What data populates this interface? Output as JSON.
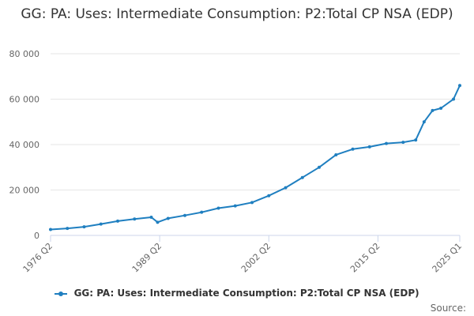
{
  "chart_data": {
    "type": "line",
    "title": "GG: PA: Uses: Intermediate Consumption: P2:Total CP NSA (EDP)",
    "xlabel": "",
    "ylabel": "",
    "x_tick_labels": [
      "1976 Q2",
      "1989 Q2",
      "2002 Q2",
      "2015 Q2",
      "2025 Q1"
    ],
    "y_tick_labels": [
      "0",
      "20 000",
      "40 000",
      "60 000",
      "80 000"
    ],
    "ylim": [
      0,
      80000
    ],
    "grid": "horizontal",
    "legend_position": "bottom",
    "color": "#1f7fc0",
    "series": [
      {
        "name": "GG: PA: Uses: Intermediate Consumption: P2:Total CP NSA (EDP)",
        "points": [
          [
            "1976 Q2",
            2600
          ],
          [
            "1978 Q2",
            3100
          ],
          [
            "1980 Q2",
            3800
          ],
          [
            "1982 Q2",
            5000
          ],
          [
            "1984 Q2",
            6300
          ],
          [
            "1986 Q2",
            7200
          ],
          [
            "1988 Q2",
            8000
          ],
          [
            "1989 Q1",
            5800
          ],
          [
            "1990 Q2",
            7500
          ],
          [
            "1992 Q2",
            8800
          ],
          [
            "1994 Q2",
            10200
          ],
          [
            "1996 Q2",
            12000
          ],
          [
            "1998 Q2",
            13000
          ],
          [
            "2000 Q2",
            14500
          ],
          [
            "2002 Q2",
            17500
          ],
          [
            "2004 Q2",
            21000
          ],
          [
            "2006 Q2",
            25500
          ],
          [
            "2008 Q2",
            30000
          ],
          [
            "2010 Q2",
            35500
          ],
          [
            "2012 Q2",
            38000
          ],
          [
            "2014 Q2",
            39000
          ],
          [
            "2016 Q2",
            40500
          ],
          [
            "2018 Q2",
            41000
          ],
          [
            "2019 Q4",
            42000
          ],
          [
            "2020 Q4",
            50000
          ],
          [
            "2021 Q4",
            55000
          ],
          [
            "2022 Q4",
            56000
          ],
          [
            "2024 Q2",
            60000
          ],
          [
            "2025 Q1",
            66000
          ]
        ]
      }
    ]
  },
  "legend": {
    "label": "GG: PA: Uses: Intermediate Consumption: P2:Total CP NSA (EDP)"
  },
  "credits": "Source:"
}
